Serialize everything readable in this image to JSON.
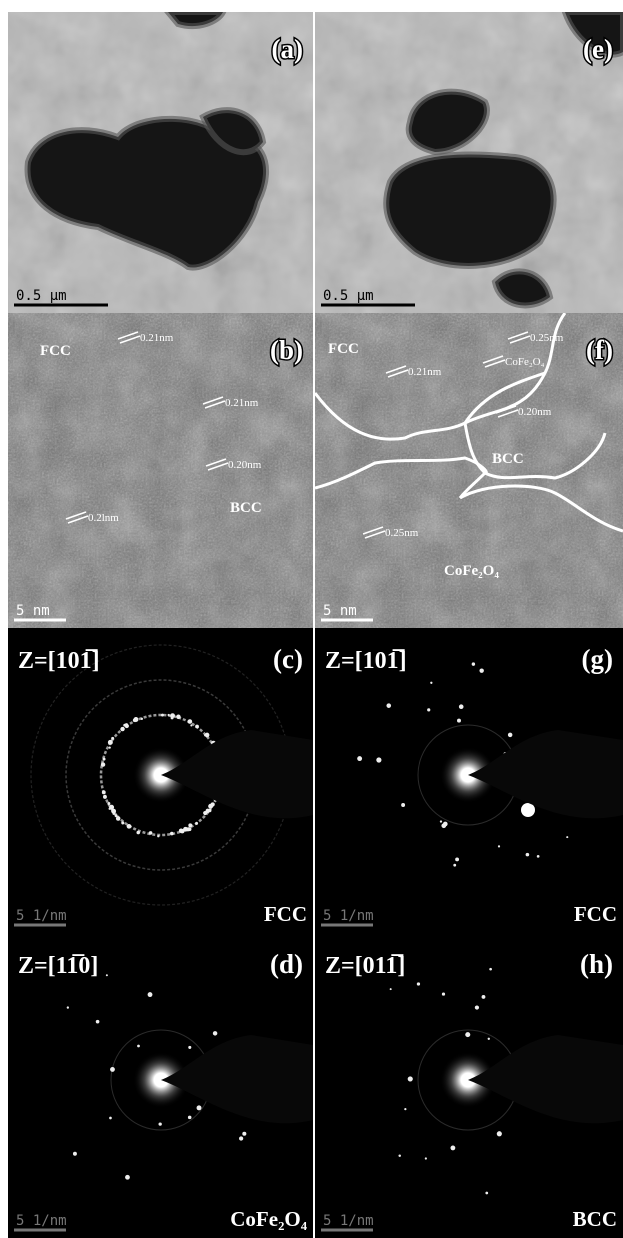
{
  "panels": [
    {
      "label": "(a)",
      "scale_bar": "0.5 μm"
    },
    {
      "label": "(e)",
      "scale_bar": "0.5 μm"
    },
    {
      "label": "(b)",
      "scale_bar": "5 nm",
      "annotations": [
        "FCC",
        "0.21nm",
        "0.21nm",
        "0.20nm",
        "BCC",
        "0.2lnm"
      ]
    },
    {
      "label": "(f)",
      "scale_bar": "5 nm",
      "annotations": [
        "FCC",
        "0.25nm",
        "CoFe₂O₄",
        "0.21nm",
        "0.20nm",
        "BCC",
        "0.25nm",
        "CoFe₂O₄"
      ]
    },
    {
      "label": "(c)",
      "zone_axis": "Z=[101̅]",
      "scale_bar": "5 1/nm",
      "phase": "FCC"
    },
    {
      "label": "(g)",
      "zone_axis": "Z=[101̅]",
      "scale_bar": "5 1/nm",
      "phase": "FCC"
    },
    {
      "label": "(d)",
      "zone_axis": "Z=[11̅0]",
      "scale_bar": "5 1/nm",
      "phase": "CoFe₂O₄"
    },
    {
      "label": "(h)",
      "zone_axis": "Z=[011̅]",
      "scale_bar": "5 1/nm",
      "phase": "BCC"
    }
  ]
}
